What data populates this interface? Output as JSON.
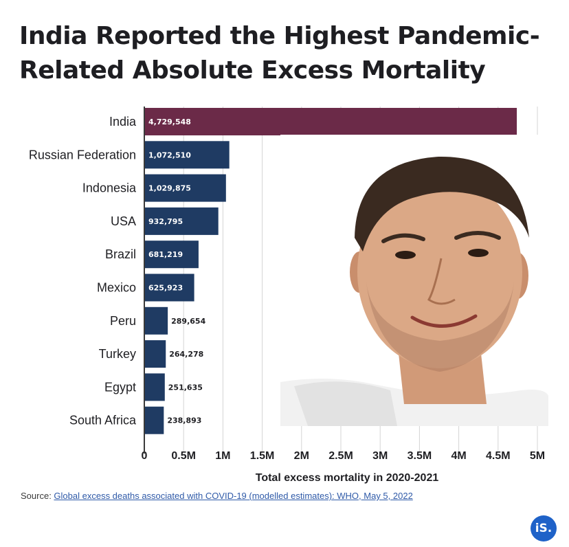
{
  "title_line1": "India Reported the Highest Pandemic-",
  "title_line2": "Related Absolute Excess Mortality",
  "source_prefix": "Source: ",
  "source_link": "Global excess deaths associated with COVID-19 (modelled estimates): WHO, May 5, 2022",
  "logo_text": "iS.",
  "colors": {
    "highlight": "#6b2a48",
    "bar": "#1f3b63",
    "logo": "#1f62c8"
  },
  "chart_data": {
    "type": "bar",
    "orientation": "horizontal",
    "categories": [
      "India",
      "Russian Federation",
      "Indonesia",
      "USA",
      "Brazil",
      "Mexico",
      "Peru",
      "Turkey",
      "Egypt",
      "South Africa"
    ],
    "values": [
      4729548,
      1072510,
      1029875,
      932795,
      681219,
      625923,
      289654,
      264278,
      251635,
      238893
    ],
    "value_labels": [
      "4,729,548",
      "1,072,510",
      "1,029,875",
      "932,795",
      "681,219",
      "625,923",
      "289,654",
      "264,278",
      "251,635",
      "238,893"
    ],
    "xlabel": "Total excess mortality in 2020-2021",
    "xticks": [
      0,
      500000,
      1000000,
      1500000,
      2000000,
      2500000,
      3000000,
      3500000,
      4000000,
      4500000,
      5000000
    ],
    "xtick_labels": [
      "0",
      "0.5M",
      "1M",
      "1.5M",
      "2M",
      "2.5M",
      "3M",
      "3.5M",
      "4M",
      "4.5M",
      "5M"
    ],
    "xlim": [
      0,
      5000000
    ],
    "grid": true,
    "highlight_category": "India"
  }
}
